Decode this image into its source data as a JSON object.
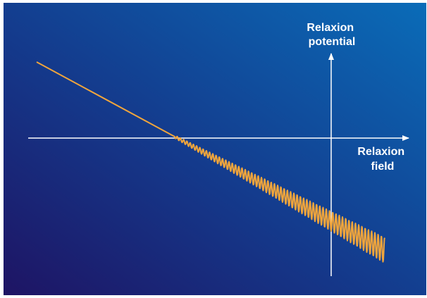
{
  "diagram": {
    "y_axis_label_line1": "Relaxion",
    "y_axis_label_line2": "potential",
    "x_axis_label_line1": "Relaxion",
    "x_axis_label_line2": "field",
    "colors": {
      "background_start": "#1e1464",
      "background_end": "#0a6cb8",
      "axis": "#ffffff",
      "curve": "#f0a53c"
    }
  }
}
